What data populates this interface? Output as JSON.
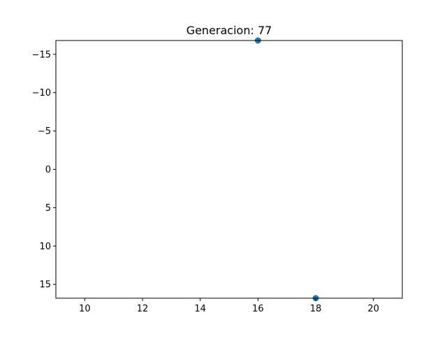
{
  "chart_data": {
    "type": "scatter",
    "title": "Generacion: 77",
    "xlabel": "",
    "ylabel": "",
    "xlim": [
      9,
      21
    ],
    "ylim": [
      -16.8,
      16.8
    ],
    "y_inverted": true,
    "grid": false,
    "x_ticks": [
      10,
      12,
      14,
      16,
      18,
      20
    ],
    "y_ticks": [
      -15,
      -10,
      -5,
      0,
      5,
      10,
      15
    ],
    "x_tick_labels": [
      "10",
      "12",
      "14",
      "16",
      "18",
      "20"
    ],
    "y_tick_labels": [
      "−15",
      "−10",
      "−5",
      "0",
      "5",
      "10",
      "15"
    ],
    "series": [
      {
        "points": [
          {
            "x": 16,
            "y": -16.8
          },
          {
            "x": 18,
            "y": 16.8
          }
        ],
        "color": "#1f77b4"
      }
    ]
  }
}
